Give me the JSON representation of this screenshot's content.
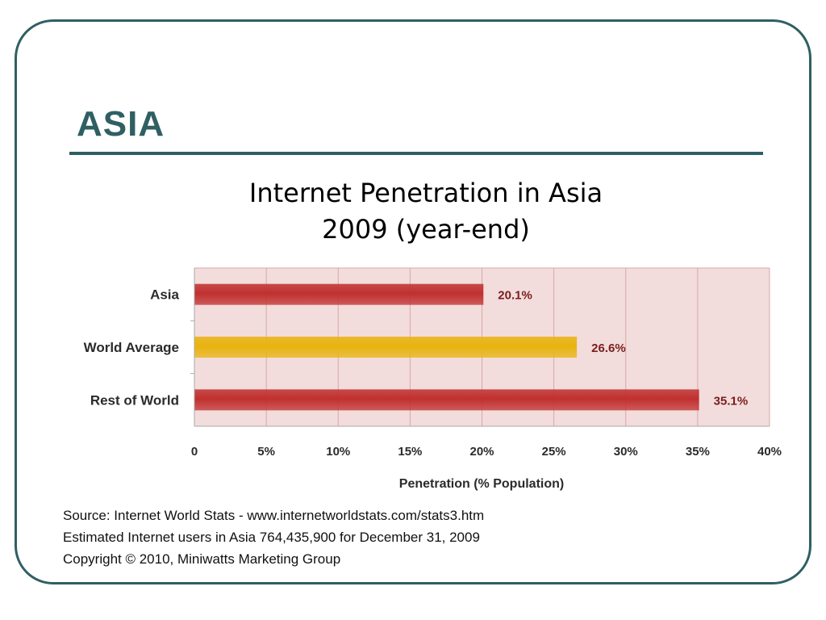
{
  "slide": {
    "title": "ASIA"
  },
  "chart_data": {
    "type": "bar",
    "orientation": "horizontal",
    "title": "Internet Penetration in Asia",
    "subtitle": "2009 (year-end)",
    "categories": [
      "Asia",
      "World Average",
      "Rest of World"
    ],
    "values": [
      20.1,
      26.6,
      35.1
    ],
    "value_labels": [
      "20.1%",
      "26.6%",
      "35.1%"
    ],
    "bar_colors": [
      "#c0302f",
      "#e8b30f",
      "#c0302f"
    ],
    "xlabel": "Penetration (% Population)",
    "xlim": [
      0,
      40
    ],
    "xticks": [
      0,
      5,
      10,
      15,
      20,
      25,
      30,
      35,
      40
    ],
    "xtick_labels": [
      "0",
      "5%",
      "10%",
      "15%",
      "20%",
      "25%",
      "30%",
      "35%",
      "40%"
    ],
    "plot_background": "#f3dcdc",
    "gridline_color": "#d9a7a7",
    "grid": true,
    "legend": "none"
  },
  "source": {
    "line1": "Source: Internet World Stats - www.internetworldstats.com/stats3.htm",
    "line2": "Estimated Internet users in Asia 764,435,900 for December 31, 2009",
    "line3": "Copyright © 2010, Miniwatts Marketing Group"
  },
  "colors": {
    "accent": "#2f5f63"
  }
}
